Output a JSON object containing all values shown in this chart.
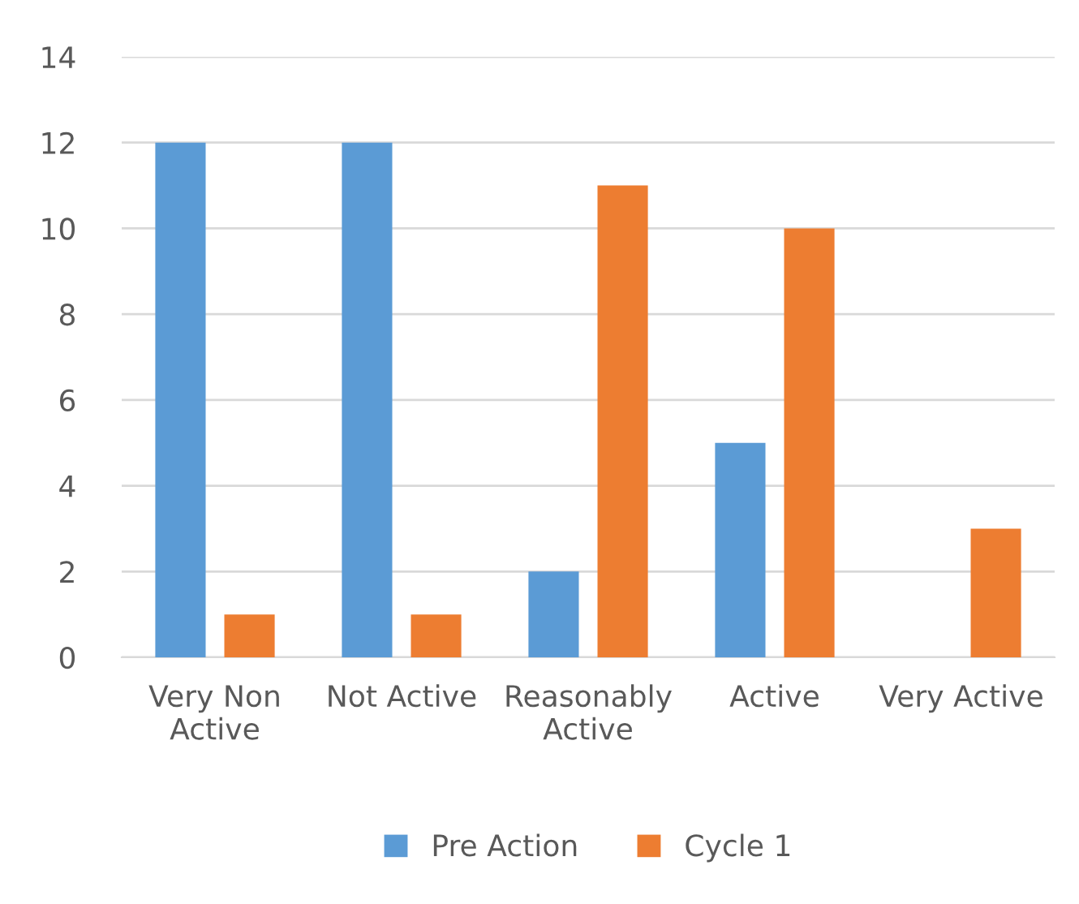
{
  "chart_data": {
    "type": "bar",
    "categories": [
      "Very Non\nActive",
      "Not Active",
      "Reasonably\nActive",
      "Active",
      "Very Active"
    ],
    "series": [
      {
        "name": "Pre Action",
        "color": "#5b9bd5",
        "values": [
          12,
          12,
          2,
          5,
          0
        ]
      },
      {
        "name": "Cycle 1",
        "color": "#ed7d31",
        "values": [
          1,
          1,
          11,
          10,
          3
        ]
      }
    ],
    "ylim": [
      0,
      14
    ],
    "yticks": [
      0,
      2,
      4,
      6,
      8,
      10,
      12,
      14
    ],
    "grid": "y",
    "legend": "bottom"
  }
}
